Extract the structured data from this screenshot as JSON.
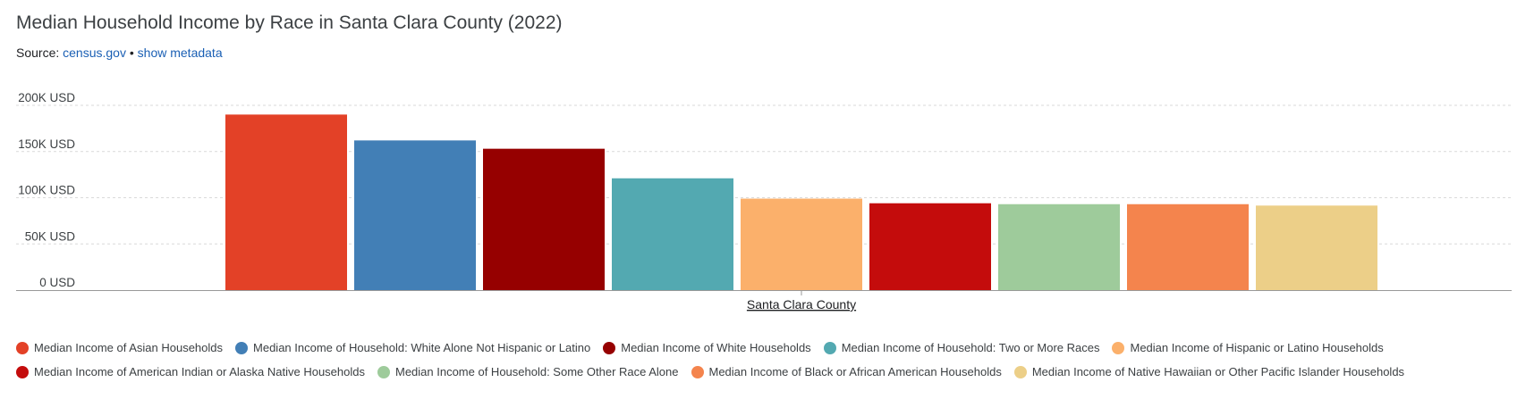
{
  "header": {
    "title": "Median Household Income by Race in Santa Clara County (2022)",
    "source_prefix": "Source:",
    "source_link": "census.gov",
    "separator": "•",
    "metadata_link": "show metadata"
  },
  "chart_data": {
    "type": "bar",
    "title": "Median Household Income by Race in Santa Clara County (2022)",
    "xlabel": "",
    "ylabel": "",
    "categories": [
      "Santa Clara County"
    ],
    "ylim": [
      0,
      200000
    ],
    "y_ticks": [
      {
        "value": 0,
        "label": "0 USD"
      },
      {
        "value": 50000,
        "label": "50K USD"
      },
      {
        "value": 100000,
        "label": "100K USD"
      },
      {
        "value": 150000,
        "label": "150K USD"
      },
      {
        "value": 200000,
        "label": "200K USD"
      }
    ],
    "grid": true,
    "legend_position": "bottom",
    "series": [
      {
        "name": "Median Income of Asian Households",
        "values": [
          190000
        ],
        "color": "#e34127"
      },
      {
        "name": "Median Income of Household: White Alone Not Hispanic or Latino",
        "values": [
          162000
        ],
        "color": "#427fb6"
      },
      {
        "name": "Median Income of White Households",
        "values": [
          153000
        ],
        "color": "#960000"
      },
      {
        "name": "Median Income of Household: Two or More Races",
        "values": [
          121000
        ],
        "color": "#53a9b1"
      },
      {
        "name": "Median Income of Hispanic or Latino Households",
        "values": [
          99000
        ],
        "color": "#fbb06b"
      },
      {
        "name": "Median Income of American Indian or Alaska Native Households",
        "values": [
          94000
        ],
        "color": "#c40c0c"
      },
      {
        "name": "Median Income of Household: Some Other Race Alone",
        "values": [
          93000
        ],
        "color": "#9ecb9b"
      },
      {
        "name": "Median Income of Black or African American Households",
        "values": [
          93000
        ],
        "color": "#f4844d"
      },
      {
        "name": "Median Income of Native Hawaiian or Other Pacific Islander Households",
        "values": [
          91500
        ],
        "color": "#eccf88"
      }
    ]
  }
}
